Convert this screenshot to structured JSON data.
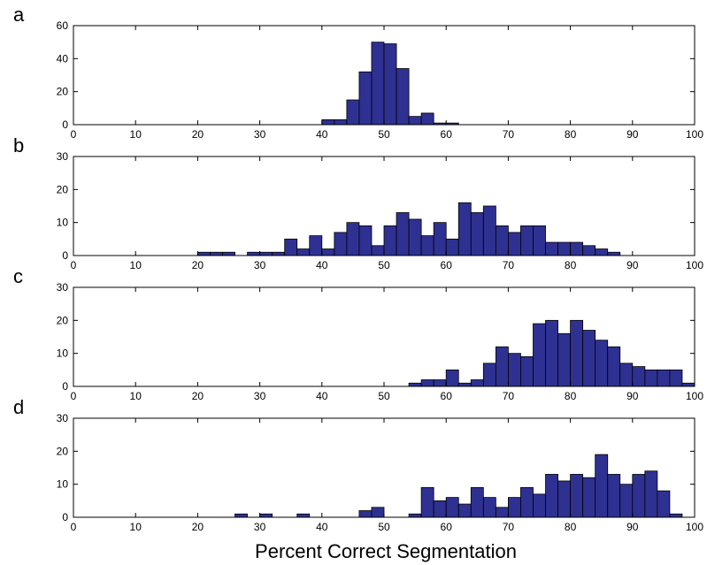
{
  "xlabel": "Percent Correct Segmentation",
  "bar_color": "#2e3192",
  "bar_edge": "#000000",
  "chart_data": [
    {
      "panel": "a",
      "type": "bar",
      "xlim": [
        0,
        100
      ],
      "ylim": [
        0,
        60
      ],
      "xticks": [
        0,
        10,
        20,
        30,
        40,
        50,
        60,
        70,
        80,
        90,
        100
      ],
      "yticks": [
        0,
        20,
        40,
        60
      ],
      "bin_width": 2,
      "bins": [
        [
          40,
          3
        ],
        [
          42,
          3
        ],
        [
          44,
          15
        ],
        [
          46,
          32
        ],
        [
          48,
          50
        ],
        [
          50,
          49
        ],
        [
          52,
          34
        ],
        [
          54,
          5
        ],
        [
          56,
          7
        ],
        [
          58,
          1
        ],
        [
          60,
          1
        ]
      ]
    },
    {
      "panel": "b",
      "type": "bar",
      "xlim": [
        0,
        100
      ],
      "ylim": [
        0,
        30
      ],
      "xticks": [
        0,
        10,
        20,
        30,
        40,
        50,
        60,
        70,
        80,
        90,
        100
      ],
      "yticks": [
        0,
        10,
        20,
        30
      ],
      "bin_width": 2,
      "bins": [
        [
          20,
          1
        ],
        [
          22,
          1
        ],
        [
          24,
          1
        ],
        [
          28,
          1
        ],
        [
          30,
          1
        ],
        [
          32,
          1
        ],
        [
          34,
          5
        ],
        [
          36,
          2
        ],
        [
          38,
          6
        ],
        [
          40,
          2
        ],
        [
          42,
          7
        ],
        [
          44,
          10
        ],
        [
          46,
          9
        ],
        [
          48,
          3
        ],
        [
          50,
          9
        ],
        [
          52,
          13
        ],
        [
          54,
          11
        ],
        [
          56,
          6
        ],
        [
          58,
          10
        ],
        [
          60,
          5
        ],
        [
          62,
          16
        ],
        [
          64,
          13
        ],
        [
          66,
          15
        ],
        [
          68,
          9
        ],
        [
          70,
          7
        ],
        [
          72,
          9
        ],
        [
          74,
          9
        ],
        [
          76,
          4
        ],
        [
          78,
          4
        ],
        [
          80,
          4
        ],
        [
          82,
          3
        ],
        [
          84,
          2
        ],
        [
          86,
          1
        ]
      ]
    },
    {
      "panel": "c",
      "type": "bar",
      "xlim": [
        0,
        100
      ],
      "ylim": [
        0,
        30
      ],
      "xticks": [
        0,
        10,
        20,
        30,
        40,
        50,
        60,
        70,
        80,
        90,
        100
      ],
      "yticks": [
        0,
        10,
        20,
        30
      ],
      "bin_width": 2,
      "bins": [
        [
          54,
          1
        ],
        [
          56,
          2
        ],
        [
          58,
          2
        ],
        [
          60,
          5
        ],
        [
          62,
          1
        ],
        [
          64,
          2
        ],
        [
          66,
          7
        ],
        [
          68,
          12
        ],
        [
          70,
          10
        ],
        [
          72,
          9
        ],
        [
          74,
          19
        ],
        [
          76,
          20
        ],
        [
          78,
          16
        ],
        [
          80,
          20
        ],
        [
          82,
          17
        ],
        [
          84,
          14
        ],
        [
          86,
          12
        ],
        [
          88,
          7
        ],
        [
          90,
          6
        ],
        [
          92,
          5
        ],
        [
          94,
          5
        ],
        [
          96,
          5
        ],
        [
          98,
          1
        ]
      ]
    },
    {
      "panel": "d",
      "type": "bar",
      "xlim": [
        0,
        100
      ],
      "ylim": [
        0,
        30
      ],
      "xticks": [
        0,
        10,
        20,
        30,
        40,
        50,
        60,
        70,
        80,
        90,
        100
      ],
      "yticks": [
        0,
        10,
        20,
        30
      ],
      "bin_width": 2,
      "bins": [
        [
          26,
          1
        ],
        [
          30,
          1
        ],
        [
          36,
          1
        ],
        [
          46,
          2
        ],
        [
          48,
          3
        ],
        [
          54,
          1
        ],
        [
          56,
          9
        ],
        [
          58,
          5
        ],
        [
          60,
          6
        ],
        [
          62,
          4
        ],
        [
          64,
          9
        ],
        [
          66,
          6
        ],
        [
          68,
          3
        ],
        [
          70,
          6
        ],
        [
          72,
          9
        ],
        [
          74,
          7
        ],
        [
          76,
          13
        ],
        [
          78,
          11
        ],
        [
          80,
          13
        ],
        [
          82,
          12
        ],
        [
          84,
          19
        ],
        [
          86,
          13
        ],
        [
          88,
          10
        ],
        [
          90,
          13
        ],
        [
          92,
          14
        ],
        [
          94,
          8
        ],
        [
          96,
          1
        ]
      ]
    }
  ]
}
